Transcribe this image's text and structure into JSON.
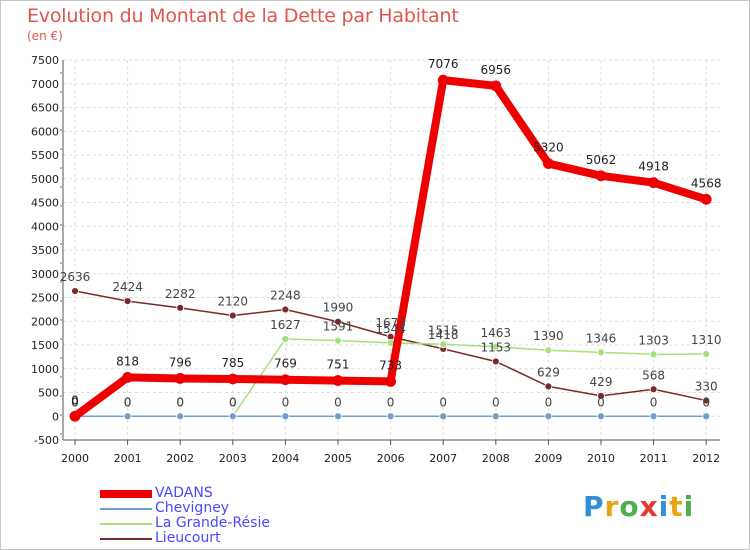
{
  "title": "Evolution du Montant de la Dette par Habitant",
  "subtitle": "(en €)",
  "logo": {
    "text": "Proxiti",
    "letters": [
      "P",
      "r",
      "o",
      "x",
      "i",
      "t",
      "i"
    ],
    "colors": [
      "#2f8fd8",
      "#e8a317",
      "#4caf50",
      "#e53935",
      "#2f8fd8",
      "#e8a317",
      "#4caf50"
    ]
  },
  "chart_data": {
    "type": "line",
    "title": "Evolution du Montant de la Dette par Habitant",
    "subtitle": "(en €)",
    "xlabel": "",
    "ylabel": "",
    "x": [
      "2000",
      "2001",
      "2002",
      "2003",
      "2004",
      "2005",
      "2006",
      "2007",
      "2008",
      "2009",
      "2010",
      "2011",
      "2012"
    ],
    "ylim": [
      -500,
      7500
    ],
    "yticks": [
      "-500",
      "0",
      "500",
      "1000",
      "1500",
      "2000",
      "2500",
      "3000",
      "3500",
      "4000",
      "4500",
      "5000",
      "5500",
      "6000",
      "6500",
      "7000",
      "7500"
    ],
    "grid": true,
    "legend_position": "bottom-left",
    "series": [
      {
        "name": "VADANS",
        "color": "#ee0000",
        "values": [
          0,
          818,
          796,
          785,
          769,
          751,
          733,
          7076,
          6956,
          5320,
          5062,
          4918,
          4568
        ],
        "labels": [
          "0",
          "818",
          "796",
          "785",
          "769",
          "751",
          "733",
          "7076",
          "6956",
          "5320",
          "5062",
          "4918",
          "4568"
        ]
      },
      {
        "name": "Chevigney",
        "color": "#6f9fd0",
        "values": [
          0,
          0,
          0,
          0,
          0,
          0,
          0,
          0,
          0,
          0,
          0,
          0,
          0
        ],
        "labels": [
          "0",
          "0",
          "0",
          "0",
          "0",
          "0",
          "0",
          "0",
          "0",
          "0",
          "0",
          "0",
          "0"
        ]
      },
      {
        "name": "La Grande-Résie",
        "color": "#a6e07a",
        "values": [
          0,
          0,
          0,
          0,
          1627,
          1591,
          1544,
          1515,
          1463,
          1390,
          1346,
          1303,
          1310
        ],
        "labels": [
          "0",
          "0",
          "0",
          "0",
          "1627",
          "1591",
          "1544",
          "1515",
          "1463",
          "1390",
          "1346",
          "1303",
          "1310"
        ]
      },
      {
        "name": "Lieucourt",
        "color": "#7a2a2a",
        "values": [
          2636,
          2424,
          2282,
          2120,
          2248,
          1990,
          1673,
          1418,
          1153,
          629,
          429,
          568,
          330
        ],
        "labels": [
          "2636",
          "2424",
          "2282",
          "2120",
          "2248",
          "1990",
          "1673",
          "1418",
          "1153",
          "629",
          "429",
          "568",
          "330"
        ]
      }
    ]
  }
}
